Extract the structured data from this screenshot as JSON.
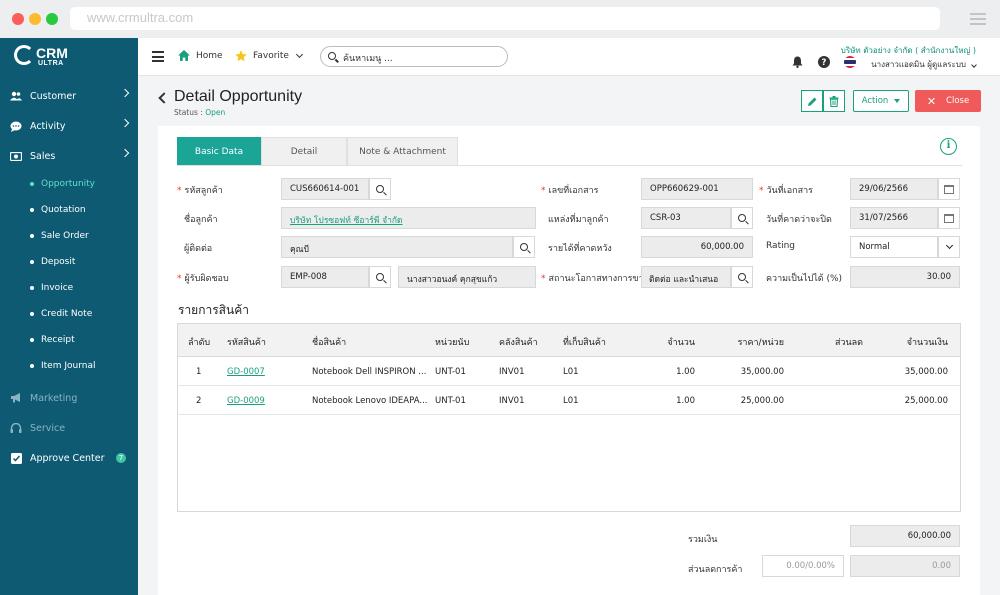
{
  "browser": {
    "url": "www.crmultra.com",
    "dots": [
      "#fb5f57",
      "#fcbc2e",
      "#28c840"
    ]
  },
  "logo": {
    "line1": "CRM",
    "line2": "ULTRA"
  },
  "sidebar": {
    "items": [
      {
        "label": "Customer",
        "icon": "users-icon"
      },
      {
        "label": "Activity",
        "icon": "chat-icon"
      },
      {
        "label": "Sales",
        "icon": "money-icon"
      }
    ],
    "sales_sub": [
      "Opportunity",
      "Quotation",
      "Sale Order",
      "Deposit",
      "Invoice",
      "Credit Note",
      "Receipt",
      "Item Journal"
    ],
    "bottom": [
      {
        "label": "Marketing",
        "icon": "megaphone-icon"
      },
      {
        "label": "Service",
        "icon": "headset-icon"
      },
      {
        "label": "Approve Center",
        "icon": "check-square-icon",
        "badge": "7"
      }
    ]
  },
  "topbar": {
    "home": "Home",
    "favorite": "Favorite",
    "search_placeholder": "ค้นหาเมนู ...",
    "company": "บริษัท ตัวอย่าง จำกัด ( สำนักงานใหญ่ )",
    "user": "นางสาวแอดมิน ผู้ดูแลระบบ"
  },
  "page": {
    "title": "Detail Opportunity",
    "status_label": "Status : ",
    "status_value": "Open",
    "action_label": "Action",
    "close_label": "Close"
  },
  "tabs": [
    "Basic Data",
    "Detail",
    "Note & Attachment"
  ],
  "form": {
    "customer_code_label": "รหัสลูกค้า",
    "customer_code": "CUS660614-001",
    "customer_name_label": "ชื่อลูกค้า",
    "customer_name": "บริษัท โปรซอฟท์ ซีอาร์พี จำกัด",
    "contact_label": "ผู้ติดต่อ",
    "contact": "คุณบี",
    "owner_label": "ผู้รับผิดชอบ",
    "owner_code": "EMP-008",
    "owner_name": "นางสาวอนงค์ คุกสุขแก้ว",
    "doc_no_label": "เลขที่เอกสาร",
    "doc_no": "OPP660629-001",
    "source_label": "แหล่งที่มาลูกค้า",
    "source": "CSR-03",
    "expected_revenue_label": "รายได้ที่คาดหวัง",
    "expected_revenue": "60,000.00",
    "stage_label": "สถานะโอกาสทางการขาย",
    "stage": "ติดต่อ และนำเสนอ",
    "doc_date_label": "วันที่เอกสาร",
    "doc_date": "29/06/2566",
    "close_date_label": "วันที่คาดว่าจะปิด",
    "close_date": "31/07/2566",
    "rating_label": "Rating",
    "rating": "Normal",
    "probability_label": "ความเป็นไปได้ (%)",
    "probability": "30.00"
  },
  "items": {
    "title": "รายการสินค้า",
    "headers": [
      "ลำดับ",
      "รหัสสินค้า",
      "ชื่อสินค้า",
      "หน่วยนับ",
      "คลังสินค้า",
      "ที่เก็บสินค้า",
      "จำนวน",
      "ราคา/หน่วย",
      "ส่วนลด",
      "จำนวนเงิน"
    ],
    "rows": [
      [
        "1",
        "GD-0007",
        "Notebook Dell INSPIRON ...",
        "UNT-01",
        "INV01",
        "L01",
        "1.00",
        "35,000.00",
        "",
        "35,000.00"
      ],
      [
        "2",
        "GD-0009",
        "Notebook Lenovo IDEAPA...",
        "UNT-01",
        "INV01",
        "L01",
        "1.00",
        "25,000.00",
        "",
        "25,000.00"
      ]
    ]
  },
  "summary": {
    "total_label": "รวมเงิน",
    "total": "60,000.00",
    "discount_label": "ส่วนลดการค้า",
    "discount_pct": "0.00/0.00%",
    "discount_amount": "0.00"
  },
  "colors": {
    "sidebar": "#0f5a73",
    "accent": "#1aa597",
    "close": "#f05a5a"
  }
}
